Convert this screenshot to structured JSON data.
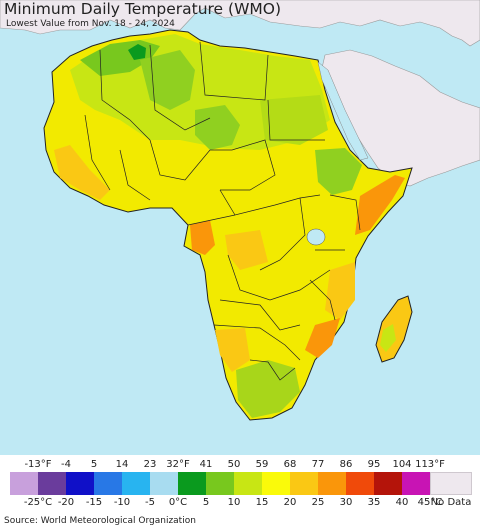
{
  "title": "Minimum Daily Temperature (WMO)",
  "subtitle": "Lowest Value from Nov. 18 - 24, 2024",
  "legend": {
    "fahrenheit_labels": [
      "-13°F",
      "-4",
      "5",
      "14",
      "23",
      "32°F",
      "41",
      "50",
      "59",
      "68",
      "77",
      "86",
      "95",
      "104",
      "113°F"
    ],
    "celsius_labels": [
      "-25°C",
      "-20",
      "-15",
      "-10",
      "-5",
      "0°C",
      "5",
      "10",
      "15",
      "20",
      "25",
      "30",
      "35",
      "40",
      "45°C"
    ],
    "colors": [
      "#c8a0dc",
      "#6a3c9c",
      "#1010c8",
      "#2878e6",
      "#28b4f0",
      "#a8dcf0",
      "#0a9a1e",
      "#78c81e",
      "#c8e614",
      "#fafa0a",
      "#fac814",
      "#fa960a",
      "#f04a0a",
      "#b4140a",
      "#c814b4",
      "#f082c8"
    ],
    "no_data_label": "No Data",
    "no_data_color": "#eee8ee"
  },
  "map": {
    "ocean_color": "#bfe9f4",
    "outside_land_color": "#eee8ee"
  },
  "source": "Source: World Meteorological Organization"
}
